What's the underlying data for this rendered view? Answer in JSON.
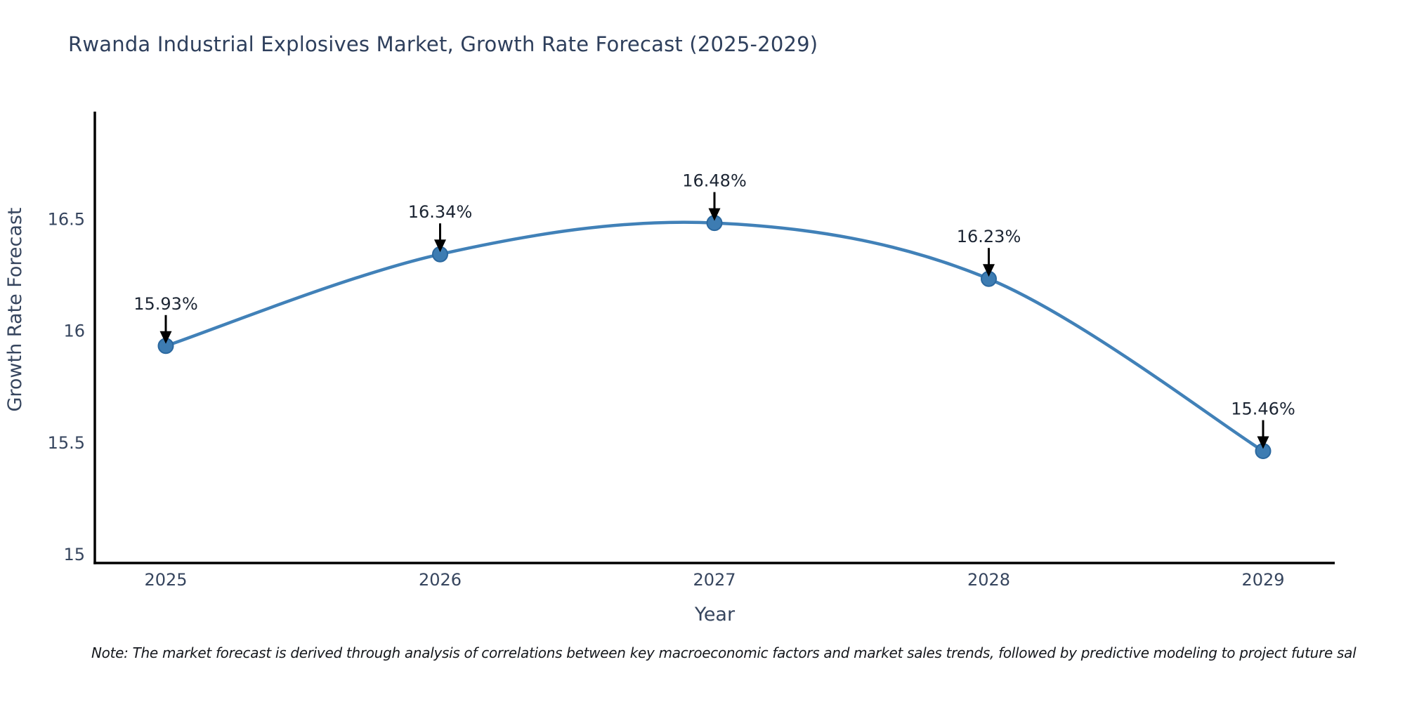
{
  "title": "Rwanda Industrial Explosives Market, Growth Rate Forecast (2025-2029)",
  "note": "Note: The market forecast is derived through analysis of correlations between key macroeconomic factors and market sales trends, followed by predictive modeling to project future sal",
  "chart_data": {
    "type": "line",
    "title": "Rwanda Industrial Explosives Market, Growth Rate Forecast (2025-2029)",
    "categories": [
      "2025",
      "2026",
      "2027",
      "2028",
      "2029"
    ],
    "values": [
      15.93,
      16.34,
      16.48,
      16.23,
      15.46
    ],
    "point_labels": [
      "15.93%",
      "16.34%",
      "16.48%",
      "16.23%",
      "15.46%"
    ],
    "xlabel": "Year",
    "ylabel": "Growth Rate Forecast",
    "yticks": [
      15,
      15.5,
      16,
      16.5
    ],
    "ytick_labels": [
      "15",
      "15.5",
      "16",
      "16.5"
    ],
    "ylim": [
      14.96,
      16.98
    ],
    "grid": false,
    "legend": "none",
    "line_shape": "spline",
    "annotations": "value labels with downward arrows above each point",
    "colors": {
      "line": "#4181b8",
      "marker_fill": "#3d7cb2",
      "marker_edge": "#2b689f",
      "axis": "#000000",
      "arrow": "#000000",
      "tick_text": "#36455e",
      "title_text": "#2e3f5c",
      "annotation_text": "#1c2533",
      "note_text": "#15181d"
    }
  }
}
